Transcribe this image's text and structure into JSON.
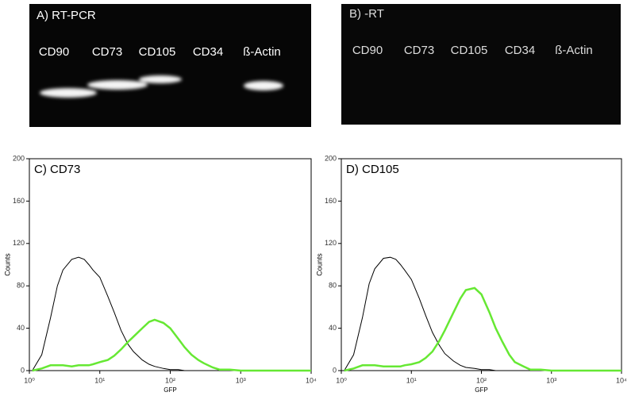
{
  "gels": [
    {
      "label": "A) RT-PCR",
      "lanes": [
        "CD90",
        "CD73",
        "CD105",
        "CD34",
        "ß-Actin"
      ]
    },
    {
      "label": "B) -RT",
      "lanes": [
        "CD90",
        "CD73",
        "CD105",
        "CD34",
        "ß-Actin"
      ]
    }
  ],
  "chart_data": [
    {
      "type": "line",
      "title": "C) CD73",
      "x_label": "GFP",
      "y_label": "Counts",
      "log_x": true,
      "x": [
        1.1,
        1.5,
        2,
        2.5,
        3,
        4,
        5,
        6,
        7,
        8,
        10,
        13,
        16,
        20,
        25,
        30,
        40,
        50,
        60,
        80,
        100,
        130,
        160,
        200,
        250,
        300,
        400,
        500,
        700,
        1000,
        2000,
        5000,
        10000
      ],
      "series": [
        {
          "color": "#000000",
          "values": [
            0,
            15,
            50,
            80,
            95,
            105,
            107,
            105,
            100,
            95,
            88,
            70,
            55,
            38,
            25,
            18,
            10,
            6,
            4,
            2,
            1,
            1,
            0,
            0,
            0,
            0,
            0,
            0,
            0,
            0,
            0,
            0,
            0
          ]
        },
        {
          "color": "#66e833",
          "values": [
            0,
            2,
            5,
            5,
            5,
            4,
            5,
            5,
            5,
            6,
            8,
            10,
            14,
            20,
            27,
            32,
            40,
            46,
            48,
            45,
            40,
            30,
            22,
            15,
            10,
            7,
            3,
            1,
            1,
            0,
            0,
            0,
            0
          ]
        }
      ],
      "xlim": [
        1,
        10000
      ],
      "xticks": [
        {
          "value": 1,
          "label": "10⁰"
        },
        {
          "value": 10,
          "label": "10¹"
        },
        {
          "value": 100,
          "label": "10²"
        },
        {
          "value": 1000,
          "label": "10³"
        },
        {
          "value": 10000,
          "label": "10⁴"
        }
      ],
      "ylim": [
        0,
        200
      ],
      "yticks": [
        0,
        40,
        80,
        120,
        160,
        200
      ]
    },
    {
      "type": "line",
      "title": "D) CD105",
      "x_label": "GFP",
      "y_label": "Counts",
      "log_x": true,
      "x": [
        1.1,
        1.5,
        2,
        2.5,
        3,
        4,
        5,
        6,
        7,
        8,
        10,
        13,
        16,
        20,
        25,
        30,
        40,
        50,
        60,
        80,
        100,
        130,
        160,
        200,
        250,
        300,
        400,
        500,
        700,
        1000,
        2000,
        5000,
        10000
      ],
      "series": [
        {
          "color": "#000000",
          "values": [
            0,
            15,
            50,
            82,
            96,
            106,
            107,
            105,
            100,
            95,
            86,
            68,
            52,
            36,
            24,
            16,
            9,
            5,
            3,
            2,
            1,
            1,
            0,
            0,
            0,
            0,
            0,
            0,
            0,
            0,
            0,
            0,
            0
          ]
        },
        {
          "color": "#66e833",
          "values": [
            0,
            2,
            5,
            5,
            5,
            4,
            4,
            4,
            4,
            5,
            6,
            8,
            12,
            18,
            28,
            38,
            55,
            68,
            76,
            78,
            72,
            55,
            40,
            27,
            15,
            8,
            4,
            1,
            1,
            0,
            0,
            0,
            0
          ]
        }
      ],
      "xlim": [
        1,
        10000
      ],
      "xticks": [
        {
          "value": 1,
          "label": "10⁰"
        },
        {
          "value": 10,
          "label": "10¹"
        },
        {
          "value": 100,
          "label": "10²"
        },
        {
          "value": 1000,
          "label": "10³"
        },
        {
          "value": 10000,
          "label": "10⁴"
        }
      ],
      "ylim": [
        0,
        200
      ],
      "yticks": [
        0,
        40,
        80,
        120,
        160,
        200
      ]
    }
  ]
}
